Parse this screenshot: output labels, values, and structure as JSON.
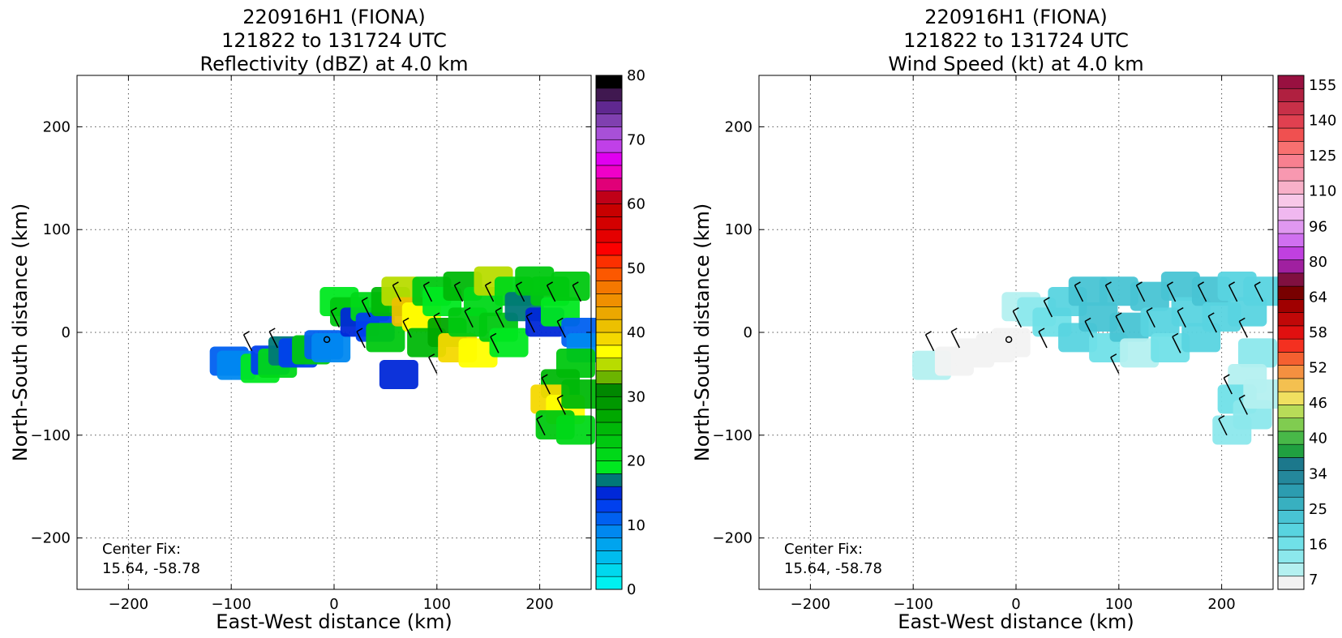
{
  "chart_data": [
    {
      "type": "heatmap",
      "title_lines": [
        "220916H1 (FIONA)",
        "121822 to 131724 UTC",
        "Reflectivity (dBZ) at 4.0 km"
      ],
      "xlabel": "East-West distance (km)",
      "ylabel": "North-South distance (km)",
      "xlim": [
        -250,
        250
      ],
      "ylim": [
        -250,
        250
      ],
      "xticks": [
        -200,
        -100,
        0,
        100,
        200
      ],
      "yticks": [
        -200,
        -100,
        0,
        100,
        200
      ],
      "tick_labels_x": [
        "−200",
        "−100",
        "0",
        "100",
        "200"
      ],
      "tick_labels_y": [
        "−200",
        "−100",
        "0",
        "100",
        "200"
      ],
      "grid": true,
      "center_fix_label": "Center Fix:",
      "center_fix_value": "15.64, -58.78",
      "colorbar": {
        "min": 0,
        "max": 80,
        "tick_values": [
          0,
          10,
          20,
          30,
          40,
          50,
          60,
          70,
          80
        ],
        "tick_labels": [
          "0",
          "10",
          "20",
          "30",
          "40",
          "50",
          "60",
          "70",
          "80"
        ],
        "colors": [
          "#00f0f0",
          "#00d8ee",
          "#00bcee",
          "#00a4ee",
          "#0088f0",
          "#0060f0",
          "#0040ee",
          "#0028d8",
          "#007878",
          "#00e820",
          "#00d818",
          "#00c810",
          "#00b808",
          "#00a800",
          "#009800",
          "#008800",
          "#6cb400",
          "#b8dc00",
          "#ffff00",
          "#f4d800",
          "#ecc000",
          "#eca800",
          "#f09000",
          "#f47800",
          "#fc5800",
          "#fc3000",
          "#fc0000",
          "#e40000",
          "#d40000",
          "#c80000",
          "#c00018",
          "#e00078",
          "#f000c8",
          "#e000f0",
          "#c040e8",
          "#a850d8",
          "#8040b0",
          "#602890",
          "#401850",
          "#000000"
        ]
      },
      "series": [
        {
          "x": -102,
          "y": -28,
          "value": 10
        },
        {
          "x": -95,
          "y": -32,
          "value": 8
        },
        {
          "x": -72,
          "y": -35,
          "value": 18
        },
        {
          "x": -62,
          "y": -27,
          "value": 12
        },
        {
          "x": -55,
          "y": -30,
          "value": 20
        },
        {
          "x": -45,
          "y": -18,
          "value": 16
        },
        {
          "x": -35,
          "y": -20,
          "value": 12
        },
        {
          "x": -22,
          "y": -17,
          "value": 22
        },
        {
          "x": -10,
          "y": -12,
          "value": 10
        },
        {
          "x": -3,
          "y": -15,
          "value": 8
        },
        {
          "x": 5,
          "y": 30,
          "value": 18
        },
        {
          "x": 15,
          "y": 20,
          "value": 22
        },
        {
          "x": 25,
          "y": 10,
          "value": 14
        },
        {
          "x": 35,
          "y": 25,
          "value": 20
        },
        {
          "x": 40,
          "y": 5,
          "value": 12
        },
        {
          "x": 50,
          "y": -5,
          "value": 22
        },
        {
          "x": 55,
          "y": 30,
          "value": 24
        },
        {
          "x": 65,
          "y": 40,
          "value": 35
        },
        {
          "x": 75,
          "y": 20,
          "value": 40
        },
        {
          "x": 85,
          "y": 15,
          "value": 36
        },
        {
          "x": 90,
          "y": -10,
          "value": 24
        },
        {
          "x": 95,
          "y": 40,
          "value": 22
        },
        {
          "x": 105,
          "y": 30,
          "value": 18
        },
        {
          "x": 110,
          "y": 0,
          "value": 26
        },
        {
          "x": 120,
          "y": -15,
          "value": 38
        },
        {
          "x": 125,
          "y": 45,
          "value": 24
        },
        {
          "x": 130,
          "y": 10,
          "value": 22
        },
        {
          "x": 140,
          "y": -20,
          "value": 36
        },
        {
          "x": 145,
          "y": 30,
          "value": 20
        },
        {
          "x": 155,
          "y": 50,
          "value": 35
        },
        {
          "x": 160,
          "y": 5,
          "value": 22
        },
        {
          "x": 170,
          "y": -10,
          "value": 18
        },
        {
          "x": 175,
          "y": 40,
          "value": 20
        },
        {
          "x": 185,
          "y": 25,
          "value": 16
        },
        {
          "x": 195,
          "y": 50,
          "value": 22
        },
        {
          "x": 205,
          "y": 10,
          "value": 14
        },
        {
          "x": 210,
          "y": 40,
          "value": 22
        },
        {
          "x": 220,
          "y": 20,
          "value": 18
        },
        {
          "x": 230,
          "y": 45,
          "value": 22
        },
        {
          "x": 240,
          "y": 0,
          "value": 10
        },
        {
          "x": 245,
          "y": -15,
          "value": 8
        },
        {
          "x": 235,
          "y": -30,
          "value": 22
        },
        {
          "x": 220,
          "y": -50,
          "value": 24
        },
        {
          "x": 210,
          "y": -65,
          "value": 38
        },
        {
          "x": 225,
          "y": -75,
          "value": 36
        },
        {
          "x": 215,
          "y": -90,
          "value": 22
        },
        {
          "x": 235,
          "y": -95,
          "value": 20
        },
        {
          "x": 240,
          "y": -60,
          "value": 24
        },
        {
          "x": 63,
          "y": -41,
          "value": 14
        }
      ]
    },
    {
      "type": "heatmap",
      "title_lines": [
        "220916H1 (FIONA)",
        "121822 to 131724 UTC",
        "Wind Speed (kt) at 4.0 km"
      ],
      "xlabel": "East-West distance (km)",
      "ylabel": "North-South distance (km)",
      "xlim": [
        -250,
        250
      ],
      "ylim": [
        -250,
        250
      ],
      "xticks": [
        -200,
        -100,
        0,
        100,
        200
      ],
      "yticks": [
        -200,
        -100,
        0,
        100,
        200
      ],
      "tick_labels_x": [
        "−200",
        "−100",
        "0",
        "100",
        "200"
      ],
      "tick_labels_y": [
        "−200",
        "−100",
        "0",
        "100",
        "200"
      ],
      "grid": true,
      "center_fix_label": "Center Fix:",
      "center_fix_value": "15.64, -58.78",
      "colorbar": {
        "min": 7,
        "max": 160,
        "tick_labels": [
          "7",
          "16",
          "25",
          "34",
          "40",
          "46",
          "52",
          "58",
          "64",
          "80",
          "96",
          "110",
          "125",
          "140",
          "155"
        ],
        "colors": [
          "#f2f2f2",
          "#b4f0f0",
          "#8ce8ec",
          "#70e0e8",
          "#58d4e0",
          "#48c4d4",
          "#38b0c0",
          "#2c9cb0",
          "#24889c",
          "#1c788c",
          "#20a040",
          "#48b848",
          "#80cc50",
          "#b8dc58",
          "#f0e060",
          "#f4c050",
          "#f49040",
          "#f46030",
          "#f43020",
          "#e01010",
          "#c00808",
          "#a00000",
          "#780000",
          "#801040",
          "#a020a0",
          "#c040e0",
          "#d070f0",
          "#e098f0",
          "#f0b8f0",
          "#f8c8e8",
          "#f8b0c8",
          "#f898b0",
          "#f88090",
          "#f87070",
          "#f05050",
          "#e04050",
          "#c83048",
          "#b02040",
          "#981040"
        ]
      },
      "series": [
        {
          "x": -82,
          "y": -32,
          "value": 14
        },
        {
          "x": -60,
          "y": -28,
          "value": 8
        },
        {
          "x": -40,
          "y": -20,
          "value": 8
        },
        {
          "x": -20,
          "y": -15,
          "value": 7
        },
        {
          "x": -5,
          "y": -10,
          "value": 7
        },
        {
          "x": 5,
          "y": 25,
          "value": 14
        },
        {
          "x": 20,
          "y": 20,
          "value": 18
        },
        {
          "x": 35,
          "y": 10,
          "value": 22
        },
        {
          "x": 50,
          "y": 30,
          "value": 25
        },
        {
          "x": 60,
          "y": -5,
          "value": 24
        },
        {
          "x": 70,
          "y": 40,
          "value": 28
        },
        {
          "x": 80,
          "y": 15,
          "value": 27
        },
        {
          "x": 90,
          "y": -15,
          "value": 22
        },
        {
          "x": 100,
          "y": 40,
          "value": 28
        },
        {
          "x": 110,
          "y": 5,
          "value": 27
        },
        {
          "x": 120,
          "y": -20,
          "value": 14
        },
        {
          "x": 130,
          "y": 35,
          "value": 28
        },
        {
          "x": 140,
          "y": 10,
          "value": 25
        },
        {
          "x": 150,
          "y": -15,
          "value": 22
        },
        {
          "x": 160,
          "y": 45,
          "value": 28
        },
        {
          "x": 170,
          "y": 20,
          "value": 26
        },
        {
          "x": 180,
          "y": -5,
          "value": 24
        },
        {
          "x": 190,
          "y": 40,
          "value": 27
        },
        {
          "x": 200,
          "y": 15,
          "value": 25
        },
        {
          "x": 215,
          "y": 45,
          "value": 26
        },
        {
          "x": 225,
          "y": 20,
          "value": 24
        },
        {
          "x": 240,
          "y": 40,
          "value": 26
        },
        {
          "x": 235,
          "y": -20,
          "value": 18
        },
        {
          "x": 225,
          "y": -45,
          "value": 14
        },
        {
          "x": 215,
          "y": -65,
          "value": 20
        },
        {
          "x": 230,
          "y": -80,
          "value": 16
        },
        {
          "x": 210,
          "y": -95,
          "value": 18
        },
        {
          "x": 240,
          "y": -60,
          "value": 14
        }
      ]
    }
  ]
}
